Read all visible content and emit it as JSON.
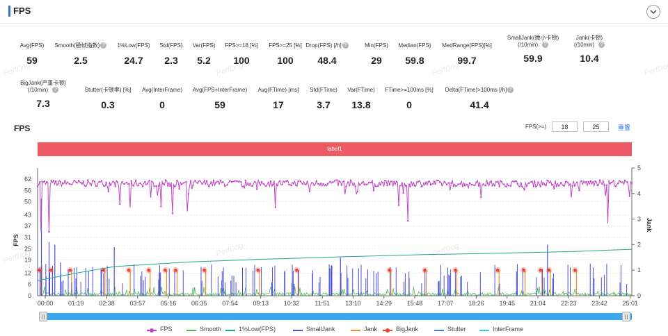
{
  "header": {
    "title": "FPS",
    "collapse_icon": "chevron-down-icon"
  },
  "stats_row1": [
    {
      "label": "Avg(FPS)",
      "value": "59",
      "help": false
    },
    {
      "label": "Smooth(稳帧指数)",
      "value": "2.5",
      "help": true
    },
    {
      "label": "1%Low(FPS)",
      "value": "24.7",
      "help": false
    },
    {
      "label": "Std(FPS)",
      "value": "2.3",
      "help": false
    },
    {
      "label": "Var(FPS)",
      "value": "5.2",
      "help": false
    },
    {
      "label": "FPS>=18 [%]",
      "value": "100",
      "help": false
    },
    {
      "label": "FPS>=25 [%]",
      "value": "100",
      "help": false
    },
    {
      "label": "Drop(FPS) [/h]",
      "value": "48.4",
      "help": true
    },
    {
      "label": "Min(FPS)",
      "value": "29",
      "help": false
    },
    {
      "label": "Median(FPS)",
      "value": "59.8",
      "help": false
    },
    {
      "label": "MedRange(FPS)[%]",
      "value": "99.7",
      "help": false
    },
    {
      "label": "SmallJank(微小卡顿)",
      "label2": "(/10min)",
      "value": "59.9",
      "help": true
    },
    {
      "label": "Jank(卡顿)",
      "label2": "(/10min)",
      "value": "10.4",
      "help": true
    }
  ],
  "stats_row2": [
    {
      "label": "BigJank(严重卡顿)",
      "label2": "(/10min)",
      "value": "7.3",
      "help": true
    },
    {
      "label": "Stutter(卡顿率) [%]",
      "value": "0.3",
      "help": false
    },
    {
      "label": "Avg(InterFrame)",
      "value": "0",
      "help": false
    },
    {
      "label": "Avg(FPS+InterFrame)",
      "value": "59",
      "help": false
    },
    {
      "label": "Avg(FTime) [ms]",
      "value": "17",
      "help": false
    },
    {
      "label": "Std(FTime)",
      "value": "3.7",
      "help": false
    },
    {
      "label": "Var(FTime)",
      "value": "13.8",
      "help": false
    },
    {
      "label": "FTime>=100ms [%]",
      "value": "0",
      "help": false
    },
    {
      "label": "Delta(FTime)>100ms [/h]",
      "value": "41.4",
      "help": true
    }
  ],
  "chart_section": {
    "title": "FPS",
    "filter_label": "FPS(>=)",
    "filter_value_1": "18",
    "filter_value_2": "25",
    "reset_label": "重置",
    "label_band": "label1"
  },
  "chart_data": {
    "type": "line",
    "ylabel": "FPS",
    "y2label": "Jank",
    "y_ticks": [
      "0",
      "6",
      "12",
      "19",
      "25",
      "31",
      "37",
      "43",
      "50",
      "56",
      "62"
    ],
    "y2_ticks": [
      "0",
      "1",
      "2",
      "3",
      "4",
      "5"
    ],
    "x_ticks": [
      "00:00",
      "01:19",
      "02:38",
      "03:57",
      "05:16",
      "06:35",
      "07:54",
      "09:13",
      "10:32",
      "11:51",
      "13:10",
      "14:29",
      "15:48",
      "17:07",
      "18:26",
      "19:45",
      "21:04",
      "22:23",
      "23:42",
      "25:01"
    ],
    "x_range_seconds": [
      0,
      1550
    ],
    "ylim": [
      0,
      62
    ],
    "y2lim": [
      0,
      5
    ],
    "series": [
      {
        "name": "FPS",
        "color": "#c144c6",
        "summary": {
          "mean": 59,
          "min": 29,
          "median": 59.8
        }
      },
      {
        "name": "Smooth",
        "color": "#4bb84f"
      },
      {
        "name": "1%Low(FPS)",
        "color": "#1aa88f",
        "points": [
          [
            0,
            8
          ],
          [
            100,
            12
          ],
          [
            200,
            15.5
          ],
          [
            400,
            18
          ],
          [
            600,
            19.5
          ],
          [
            800,
            20.7
          ],
          [
            1000,
            21.8
          ],
          [
            1200,
            22.6
          ],
          [
            1400,
            23.5
          ],
          [
            1550,
            24.7
          ]
        ]
      },
      {
        "name": "SmallJank",
        "color": "#4a4fd6"
      },
      {
        "name": "Jank",
        "color": "#f08a2a"
      },
      {
        "name": "BigJank",
        "color": "#e8412f",
        "times": [
          5,
          35,
          85,
          172,
          238,
          290,
          333,
          360,
          435,
          575,
          676,
          918,
          1010,
          1090,
          1200,
          1268,
          1312,
          1334,
          1402
        ]
      },
      {
        "name": "Stutter",
        "color": "#3a7fd8"
      },
      {
        "name": "InterFrame",
        "color": "#3ac6e0"
      }
    ]
  },
  "slider": {
    "start": 0,
    "end": 1
  },
  "watermark": "PerfDog"
}
